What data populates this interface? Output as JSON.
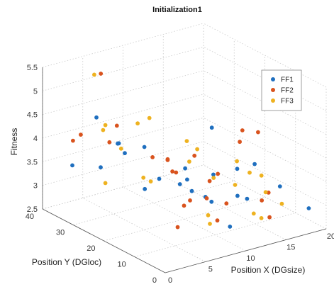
{
  "chart_data": {
    "type": "scatter",
    "title": "Initialization1",
    "xlabel": "Position X (DGsize)",
    "ylabel": "Position Y (DGloc)",
    "zlabel": "Fitness",
    "xlim": [
      0,
      20
    ],
    "ylim": [
      0,
      40
    ],
    "zlim": [
      2.5,
      5.5
    ],
    "xticks": [
      "0",
      "5",
      "10",
      "15",
      "20"
    ],
    "yticks": [
      "0",
      "10",
      "20",
      "30",
      "40"
    ],
    "zticks": [
      "2.5",
      "3",
      "3.5",
      "4",
      "4.5",
      "5",
      "5.5"
    ],
    "grid": true,
    "legend_position": "top-right",
    "series": [
      {
        "name": "FF1",
        "color": "#1f6fbf",
        "points": [
          [
            2.9,
            37.9,
            3.36
          ],
          [
            4.9,
            33.9,
            3.36
          ],
          [
            5.4,
            29.3,
            4.0
          ],
          [
            7.2,
            25.7,
            3.96
          ],
          [
            9.2,
            26.1,
            3.18
          ],
          [
            12.5,
            26.3,
            3.24
          ],
          [
            14.4,
            22.6,
            4.14
          ],
          [
            6.8,
            24.5,
            3.13
          ],
          [
            9.6,
            20.4,
            3.24
          ],
          [
            12.5,
            17.1,
            3.42
          ],
          [
            11.4,
            16.8,
            3.01
          ],
          [
            8.4,
            14.9,
            3.58
          ],
          [
            11.5,
            6.7,
            3.94
          ],
          [
            11.2,
            14.3,
            3.0
          ],
          [
            6.6,
            32.8,
            3.82
          ],
          [
            8.6,
            13.9,
            3.36
          ],
          [
            15.0,
            10.2,
            3.76
          ],
          [
            13.6,
            9.0,
            3.13
          ],
          [
            12.5,
            11.7,
            2.5
          ],
          [
            18.1,
            0.7,
            3.0
          ],
          [
            15.7,
            3.8,
            3.47
          ],
          [
            4.6,
            34.5,
            4.41
          ],
          [
            7.9,
            33.9,
            3.52
          ],
          [
            12.1,
            8.2,
            3.29
          ]
        ]
      },
      {
        "name": "FF2",
        "color": "#d9531e",
        "points": [
          [
            4.8,
            30.8,
            4.0
          ],
          [
            5.6,
            35.7,
            5.25
          ],
          [
            6.6,
            33.1,
            4.19
          ],
          [
            3.7,
            39.8,
            3.78
          ],
          [
            4.1,
            38.3,
            3.94
          ],
          [
            7.3,
            23.3,
            3.82
          ],
          [
            9.1,
            23.1,
            3.7
          ],
          [
            10.3,
            23.5,
            3.35
          ],
          [
            10.4,
            19.2,
            2.9
          ],
          [
            12.1,
            6.6,
            4.73
          ],
          [
            14.2,
            7.0,
            4.58
          ],
          [
            8.4,
            19.7,
            3.59
          ],
          [
            11.4,
            20.4,
            3.76
          ],
          [
            14.9,
            14.8,
            4.08
          ],
          [
            8.2,
            15.4,
            3.02
          ],
          [
            5.2,
            9.6,
            2.9
          ],
          [
            14.6,
            4.3,
            2.85
          ],
          [
            9.4,
            10.2,
            3.66
          ],
          [
            9.5,
            11.4,
            3.25
          ],
          [
            7.5,
            18.9,
            3.9
          ],
          [
            9.7,
            5.5,
            3.33
          ],
          [
            11.8,
            13.8,
            3.58
          ],
          [
            15.2,
            6.2,
            3.28
          ],
          [
            8.0,
            4.0,
            3.1
          ],
          [
            14.4,
            6.3,
            3.15
          ]
        ]
      },
      {
        "name": "FF3",
        "color": "#eeb220",
        "points": [
          [
            4.0,
            30.0,
            3.2
          ],
          [
            5.2,
            36.8,
            5.21
          ],
          [
            5.9,
            35.0,
            4.17
          ],
          [
            5.8,
            29.6,
            3.86
          ],
          [
            9.2,
            29.3,
            4.36
          ],
          [
            8.7,
            15.8,
            4.35
          ],
          [
            11.9,
            20.8,
            3.86
          ],
          [
            10.8,
            20.5,
            3.66
          ],
          [
            6.7,
            22.3,
            3.37
          ],
          [
            12.3,
            16.5,
            3.38
          ],
          [
            10.2,
            4.0,
            3.75
          ],
          [
            12.5,
            5.3,
            3.86
          ],
          [
            13.4,
            11.8,
            3.84
          ],
          [
            7.5,
            26.8,
            3.26
          ],
          [
            9.1,
            9.9,
            2.96
          ],
          [
            14.2,
            8.4,
            2.81
          ],
          [
            10.2,
            12.2,
            2.65
          ],
          [
            14.0,
            4.0,
            3.42
          ],
          [
            3.9,
            30.5,
            4.31
          ],
          [
            8.5,
            31.3,
            4.21
          ],
          [
            14.6,
            0.3,
            3.27
          ],
          [
            12.4,
            1.2,
            3.04
          ],
          [
            13.9,
            5.1,
            3.74
          ]
        ]
      }
    ]
  }
}
